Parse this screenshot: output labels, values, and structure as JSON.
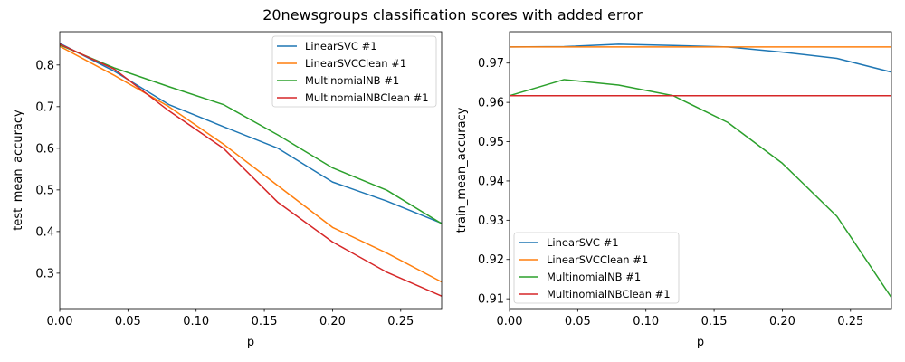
{
  "figure": {
    "title": "20newsgroups classification scores with added error"
  },
  "colors": {
    "LinearSVC #1": "#1f77b4",
    "LinearSVCClean #1": "#ff7f0e",
    "MultinomialNB #1": "#2ca02c",
    "MultinomialNBClean #1": "#d62728"
  },
  "chart_data": [
    {
      "type": "line",
      "xlabel": "p",
      "ylabel": "test_mean_accuracy",
      "xlim": [
        0.0,
        0.28
      ],
      "ylim": [
        0.215,
        0.88
      ],
      "xticks": [
        0.0,
        0.05,
        0.1,
        0.15,
        0.2,
        0.25
      ],
      "xticklabels": [
        "0.00",
        "0.05",
        "0.10",
        "0.15",
        "0.20",
        "0.25"
      ],
      "yticks": [
        0.3,
        0.4,
        0.5,
        0.6,
        0.7,
        0.8
      ],
      "yticklabels": [
        "0.3",
        "0.4",
        "0.5",
        "0.6",
        "0.7",
        "0.8"
      ],
      "grid": false,
      "legend": "top-right",
      "x": [
        0.0,
        0.04,
        0.08,
        0.12,
        0.16,
        0.2,
        0.24,
        0.28
      ],
      "series": [
        {
          "name": "LinearSVC #1",
          "values": [
            0.852,
            0.785,
            0.705,
            0.652,
            0.6,
            0.519,
            0.473,
            0.42
          ]
        },
        {
          "name": "LinearSVCClean #1",
          "values": [
            0.845,
            0.775,
            0.7,
            0.61,
            0.51,
            0.41,
            0.348,
            0.279
          ]
        },
        {
          "name": "MultinomialNB #1",
          "values": [
            0.848,
            0.793,
            0.748,
            0.705,
            0.632,
            0.553,
            0.499,
            0.419
          ]
        },
        {
          "name": "MultinomialNBClean #1",
          "values": [
            0.85,
            0.79,
            0.69,
            0.6,
            0.47,
            0.375,
            0.302,
            0.245
          ]
        }
      ]
    },
    {
      "type": "line",
      "xlabel": "p",
      "ylabel": "train_mean_accuracy",
      "xlim": [
        0.0,
        0.28
      ],
      "ylim": [
        0.9075,
        0.978
      ],
      "xticks": [
        0.0,
        0.05,
        0.1,
        0.15,
        0.2,
        0.25
      ],
      "xticklabels": [
        "0.00",
        "0.05",
        "0.10",
        "0.15",
        "0.20",
        "0.25"
      ],
      "yticks": [
        0.91,
        0.92,
        0.93,
        0.94,
        0.95,
        0.96,
        0.97
      ],
      "yticklabels": [
        "0.91",
        "0.92",
        "0.93",
        "0.94",
        "0.95",
        "0.96",
        "0.97"
      ],
      "grid": false,
      "legend": "bottom-left",
      "x": [
        0.0,
        0.04,
        0.08,
        0.12,
        0.16,
        0.2,
        0.24,
        0.28
      ],
      "series": [
        {
          "name": "LinearSVC #1",
          "values": [
            0.9741,
            0.9742,
            0.9748,
            0.9745,
            0.9741,
            0.9728,
            0.9712,
            0.9677
          ]
        },
        {
          "name": "LinearSVCClean #1",
          "values": [
            0.9741,
            0.9741,
            0.9741,
            0.9741,
            0.9741,
            0.9741,
            0.9741,
            0.9741
          ]
        },
        {
          "name": "MultinomialNB #1",
          "values": [
            0.9617,
            0.9658,
            0.9644,
            0.9617,
            0.9549,
            0.9445,
            0.931,
            0.9103
          ]
        },
        {
          "name": "MultinomialNBClean #1",
          "values": [
            0.9617,
            0.9617,
            0.9617,
            0.9617,
            0.9617,
            0.9617,
            0.9617,
            0.9617
          ]
        }
      ]
    }
  ]
}
